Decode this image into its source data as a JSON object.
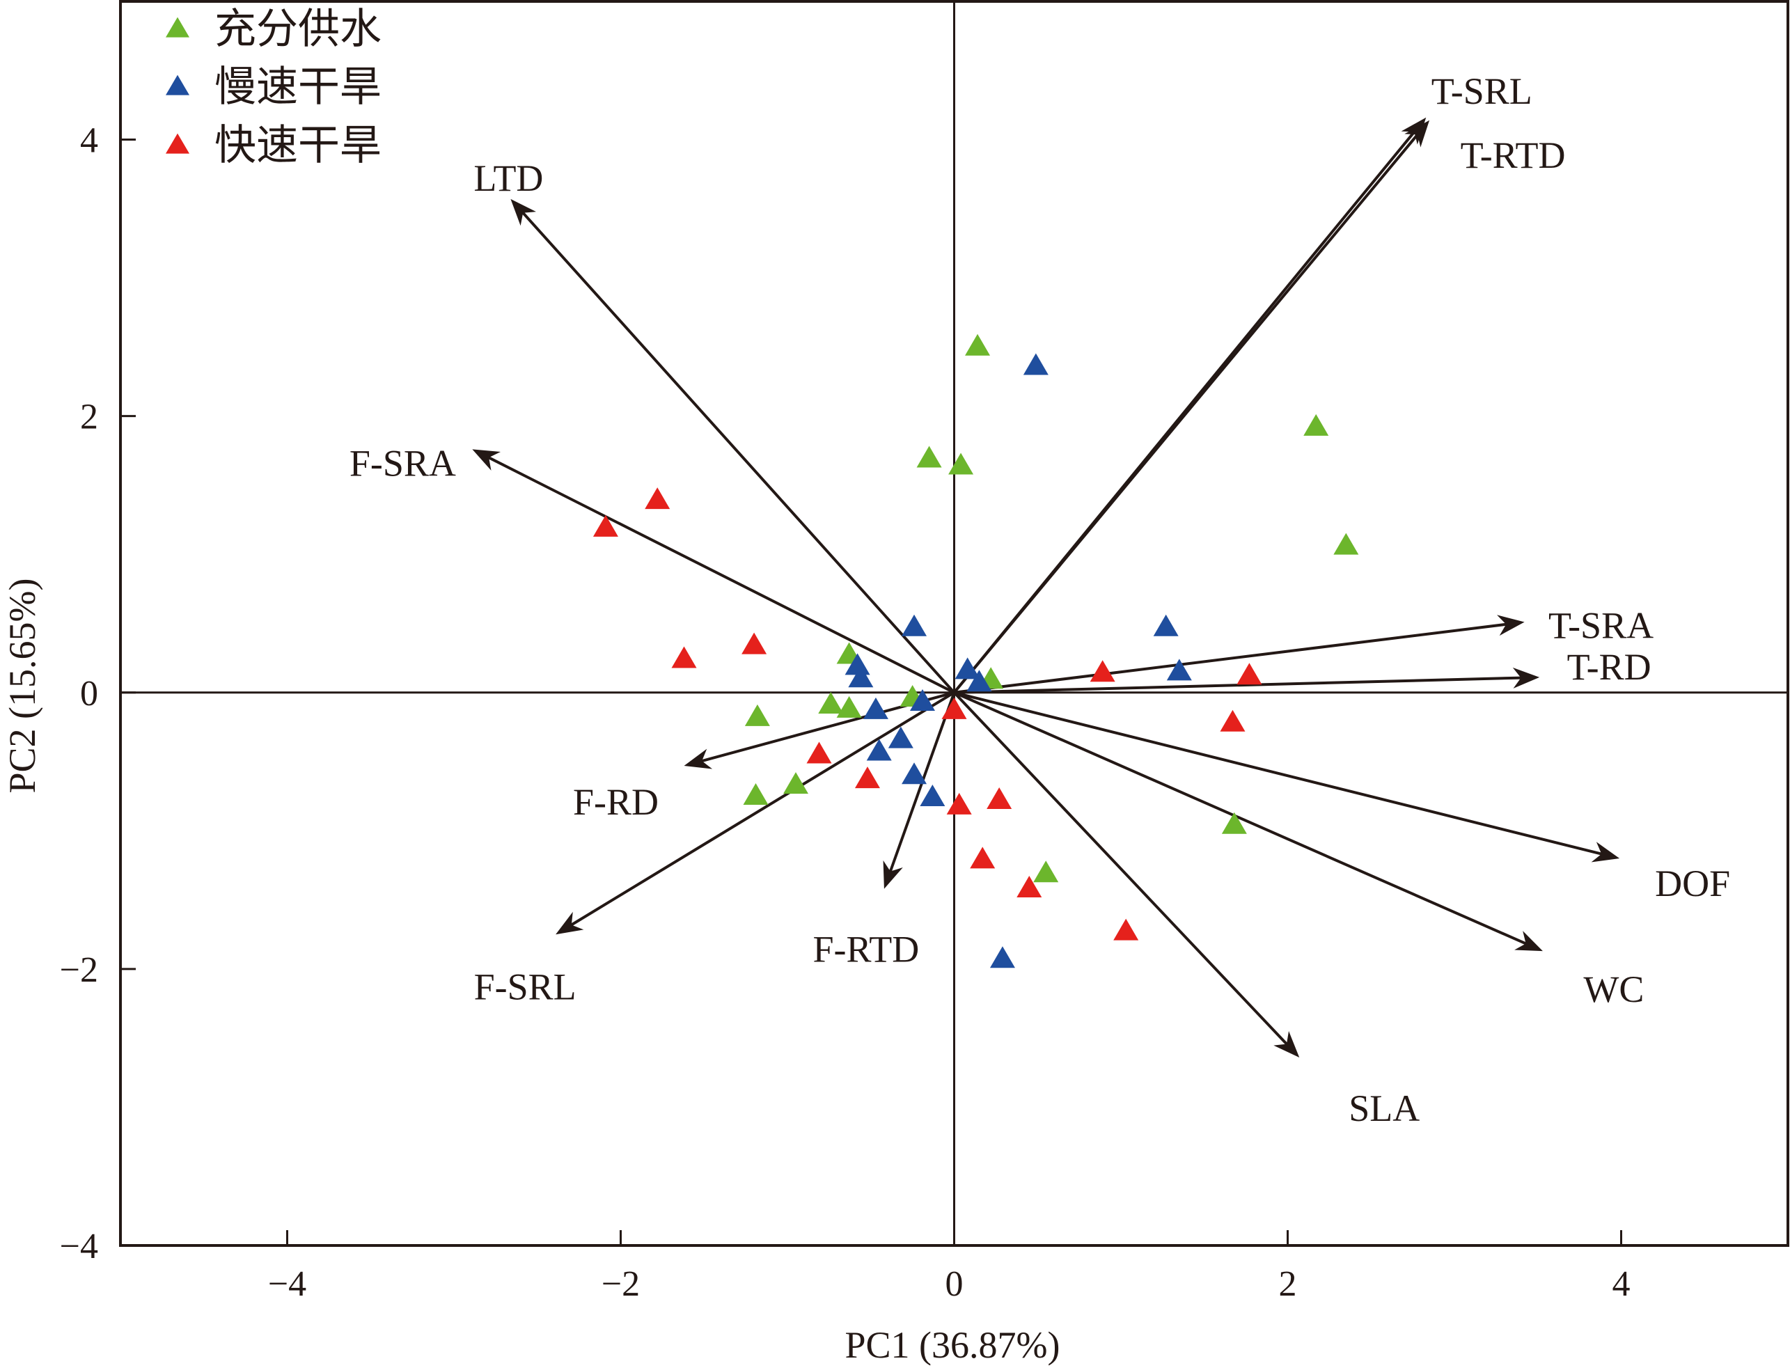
{
  "chart_data": {
    "type": "scatter",
    "subtype": "pca-biplot",
    "title": "",
    "xlabel": "PC1 (36.87%)",
    "ylabel": "PC2 (15.65%)",
    "xlim": [
      -5,
      5
    ],
    "ylim": [
      -4,
      5
    ],
    "x_ticks": [
      -4,
      -2,
      0,
      2,
      4
    ],
    "x_tick_labels": [
      "−4",
      "−2",
      "0",
      "2",
      "4"
    ],
    "y_ticks": [
      -4,
      -2,
      0,
      2,
      4
    ],
    "y_tick_labels": [
      "−4",
      "−2",
      "0",
      "2",
      "4"
    ],
    "grid": false,
    "zero_lines": true,
    "legend_position": "top-left",
    "marker": "triangle",
    "series": [
      {
        "name": "充分供水",
        "color": "#6cb62c",
        "points": [
          [
            0.14,
            2.49
          ],
          [
            -0.15,
            1.68
          ],
          [
            0.04,
            1.63
          ],
          [
            2.17,
            1.91
          ],
          [
            2.35,
            1.05
          ],
          [
            -0.63,
            0.26
          ],
          [
            -0.74,
            -0.1
          ],
          [
            -0.63,
            -0.13
          ],
          [
            -0.25,
            -0.05
          ],
          [
            0.22,
            0.08
          ],
          [
            -1.18,
            -0.19
          ],
          [
            -0.95,
            -0.68
          ],
          [
            -1.19,
            -0.76
          ],
          [
            1.68,
            -0.97
          ],
          [
            0.55,
            -1.32
          ]
        ]
      },
      {
        "name": "慢速干旱",
        "color": "#1f4e9e",
        "points": [
          [
            0.49,
            2.35
          ],
          [
            -0.24,
            0.46
          ],
          [
            -0.58,
            0.18
          ],
          [
            -0.56,
            0.09
          ],
          [
            0.08,
            0.15
          ],
          [
            0.15,
            0.06
          ],
          [
            -0.47,
            -0.14
          ],
          [
            -0.19,
            -0.08
          ],
          [
            -0.32,
            -0.35
          ],
          [
            -0.45,
            -0.44
          ],
          [
            -0.24,
            -0.61
          ],
          [
            -0.13,
            -0.77
          ],
          [
            1.27,
            0.46
          ],
          [
            1.35,
            0.14
          ],
          [
            0.29,
            -1.94
          ]
        ]
      },
      {
        "name": "快速干旱",
        "color": "#e5211c",
        "points": [
          [
            -1.78,
            1.38
          ],
          [
            -2.09,
            1.18
          ],
          [
            -1.62,
            0.23
          ],
          [
            -1.2,
            0.33
          ],
          [
            0.0,
            -0.14
          ],
          [
            -0.81,
            -0.46
          ],
          [
            -0.52,
            -0.64
          ],
          [
            0.03,
            -0.83
          ],
          [
            0.27,
            -0.79
          ],
          [
            0.17,
            -1.22
          ],
          [
            0.45,
            -1.43
          ],
          [
            1.03,
            -1.74
          ],
          [
            0.89,
            0.13
          ],
          [
            1.77,
            0.11
          ],
          [
            1.67,
            -0.23
          ]
        ]
      }
    ],
    "loadings": [
      {
        "name": "T-SRL",
        "x": 2.83,
        "y": 4.16
      },
      {
        "name": "T-RTD",
        "x": 2.85,
        "y": 4.14
      },
      {
        "name": "LTD",
        "x": -2.66,
        "y": 3.57
      },
      {
        "name": "F-SRA",
        "x": -2.89,
        "y": 1.76
      },
      {
        "name": "T-SRA",
        "x": 3.42,
        "y": 0.51
      },
      {
        "name": "T-RD",
        "x": 3.51,
        "y": 0.11
      },
      {
        "name": "DOF",
        "x": 3.99,
        "y": -1.2
      },
      {
        "name": "WC",
        "x": 3.53,
        "y": -1.87
      },
      {
        "name": "SLA",
        "x": 2.07,
        "y": -2.64
      },
      {
        "name": "F-RD",
        "x": -1.62,
        "y": -0.53
      },
      {
        "name": "F-SRL",
        "x": -2.39,
        "y": -1.75
      },
      {
        "name": "F-RTD",
        "x": -0.42,
        "y": -1.42
      }
    ],
    "text_color": "#231815"
  }
}
